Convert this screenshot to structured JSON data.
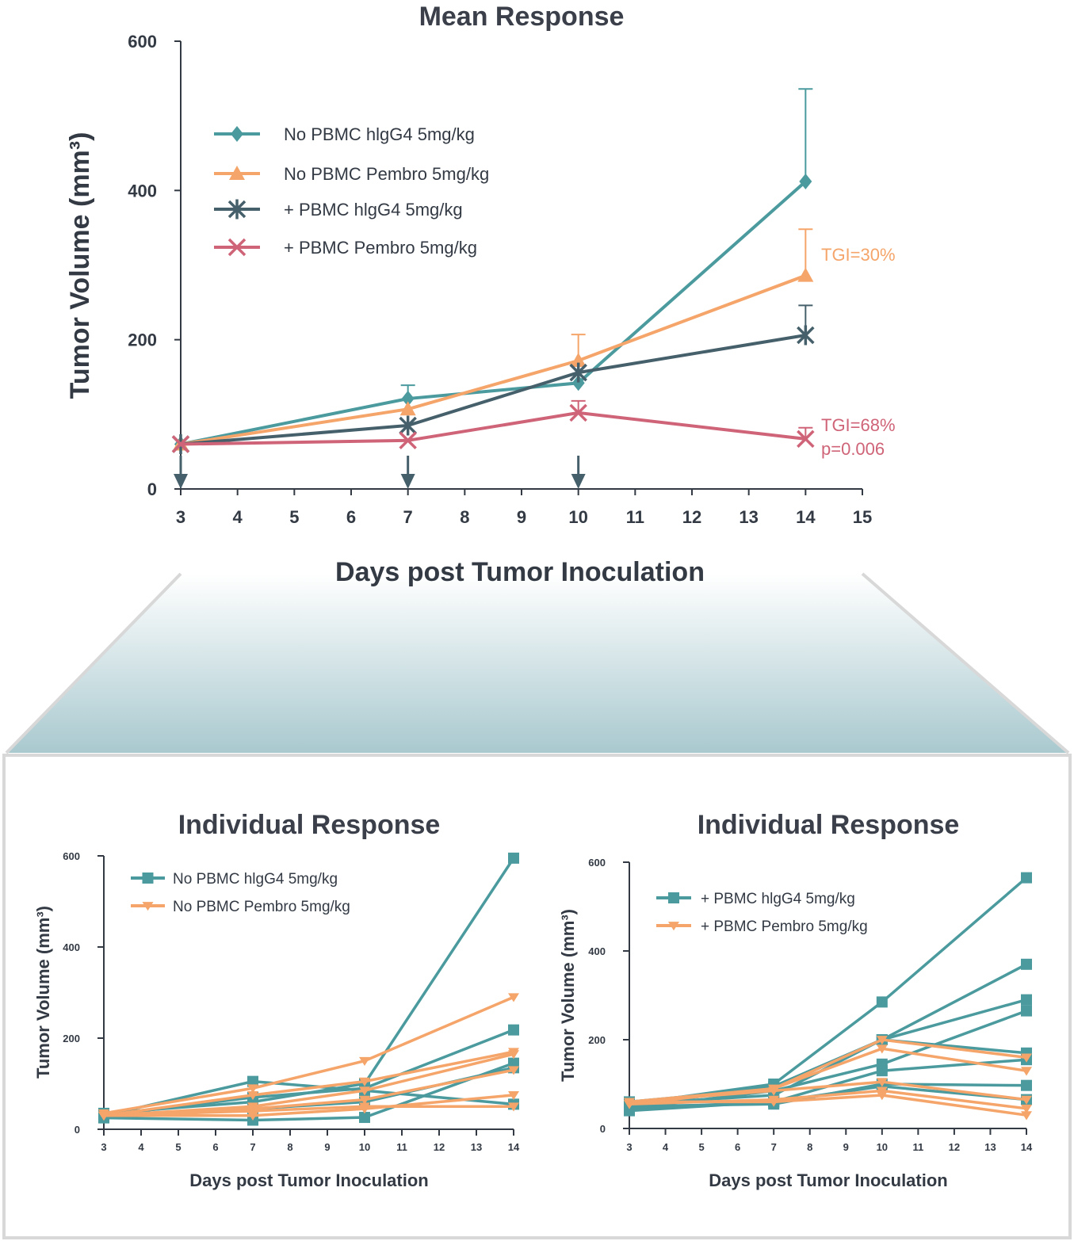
{
  "colors": {
    "teal": "#4a9a9e",
    "orange": "#f5a56a",
    "dark": "#46606b",
    "red": "#cf6478",
    "axis": "#333a44"
  },
  "chart_data": [
    {
      "type": "line",
      "title": "Mean Response",
      "xlabel": "Days post Tumor Inoculation",
      "ylabel": "Tumor Volume (mm³)",
      "xlim": [
        3,
        15
      ],
      "ylim": [
        0,
        600
      ],
      "xticks": [
        3,
        4,
        5,
        6,
        7,
        8,
        9,
        10,
        11,
        12,
        13,
        14,
        15
      ],
      "yticks": [
        0,
        200,
        400,
        600
      ],
      "grid": false,
      "legend_placement": "top-left",
      "treatment_days": [
        3,
        7,
        10
      ],
      "series": [
        {
          "name": "No PBMC hlgG4 5mg/kg",
          "color": "#4a9a9e",
          "marker": "diamond",
          "x": [
            3,
            7,
            10,
            14
          ],
          "y": [
            60,
            121,
            142,
            412
          ],
          "error_upper": [
            null,
            139,
            null,
            536
          ]
        },
        {
          "name": "No PBMC Pembro 5mg/kg",
          "color": "#f5a56a",
          "marker": "triangle-up",
          "x": [
            3,
            7,
            10,
            14
          ],
          "y": [
            60,
            107,
            172,
            286
          ],
          "error_upper": [
            null,
            null,
            207,
            348
          ]
        },
        {
          "name": "+ PBMC hlgG4 5mg/kg",
          "color": "#46606b",
          "marker": "asterisk",
          "x": [
            3,
            7,
            10,
            14
          ],
          "y": [
            60,
            85,
            156,
            206
          ],
          "error_upper": [
            null,
            null,
            null,
            246
          ]
        },
        {
          "name": "+ PBMC Pembro 5mg/kg",
          "color": "#cf6478",
          "marker": "x",
          "x": [
            3,
            7,
            10,
            14
          ],
          "y": [
            60,
            65,
            102,
            67
          ],
          "error_upper": [
            null,
            null,
            118,
            82
          ]
        }
      ],
      "annotations": [
        {
          "text": "TGI=30%",
          "color": "#f5a56a",
          "series": 1
        },
        {
          "text": "TGI=68%",
          "color": "#cf6478",
          "series": 3
        },
        {
          "text": "p=0.006",
          "color": "#cf6478",
          "series": 3
        }
      ]
    },
    {
      "type": "line",
      "title": "Individual Response",
      "xlabel": "Days post Tumor Inoculation",
      "ylabel": "Tumor Volume (mm³)",
      "xlim": [
        3,
        14
      ],
      "ylim": [
        0,
        600
      ],
      "xticks": [
        3,
        4,
        5,
        6,
        7,
        8,
        9,
        10,
        11,
        12,
        13,
        14
      ],
      "yticks": [
        0,
        200,
        400,
        600
      ],
      "grid": false,
      "legend_placement": "top-left",
      "x": [
        3,
        7,
        10,
        14
      ],
      "series": [
        {
          "name": "No PBMC hlgG4 5mg/kg",
          "color": "#4a9a9e",
          "marker": "square",
          "lines": [
            [
              35,
              60,
              100,
              595
            ],
            [
              25,
              20,
              26,
              145
            ],
            [
              30,
              105,
              85,
              55
            ],
            [
              30,
              70,
              90,
              218
            ],
            [
              30,
              45,
              60,
              135
            ]
          ]
        },
        {
          "name": "No PBMC Pembro 5mg/kg",
          "color": "#f5a56a",
          "marker": "triangle-down",
          "lines": [
            [
              35,
              90,
              150,
              290
            ],
            [
              30,
              75,
              105,
              170
            ],
            [
              30,
              50,
              85,
              165
            ],
            [
              30,
              45,
              65,
              130
            ],
            [
              30,
              30,
              45,
              75
            ],
            [
              30,
              40,
              50,
              50
            ]
          ]
        }
      ]
    },
    {
      "type": "line",
      "title": "Individual Response",
      "xlabel": "Days post Tumor Inoculation",
      "ylabel": "Tumor Volume (mm³)",
      "xlim": [
        3,
        14
      ],
      "ylim": [
        0,
        600
      ],
      "xticks": [
        3,
        4,
        5,
        6,
        7,
        8,
        9,
        10,
        11,
        12,
        13,
        14
      ],
      "yticks": [
        0,
        200,
        400,
        600
      ],
      "grid": false,
      "legend_placement": "top-left",
      "x": [
        3,
        7,
        10,
        14
      ],
      "series": [
        {
          "name": "+ PBMC hlgG4 5mg/kg",
          "color": "#4a9a9e",
          "marker": "square",
          "lines": [
            [
              55,
              100,
              285,
              565
            ],
            [
              50,
              95,
              200,
              370
            ],
            [
              60,
              90,
              200,
              290
            ],
            [
              45,
              85,
              145,
              265
            ],
            [
              55,
              75,
              200,
              170
            ],
            [
              40,
              60,
              130,
              155
            ],
            [
              50,
              55,
              100,
              97
            ],
            [
              45,
              60,
              95,
              65
            ]
          ]
        },
        {
          "name": "+ PBMC Pembro 5mg/kg",
          "color": "#f5a56a",
          "marker": "triangle-down",
          "lines": [
            [
              60,
              90,
              200,
              160
            ],
            [
              55,
              90,
              180,
              130
            ],
            [
              60,
              85,
              105,
              65
            ],
            [
              55,
              65,
              85,
              45
            ],
            [
              60,
              60,
              75,
              30
            ]
          ]
        }
      ]
    }
  ]
}
